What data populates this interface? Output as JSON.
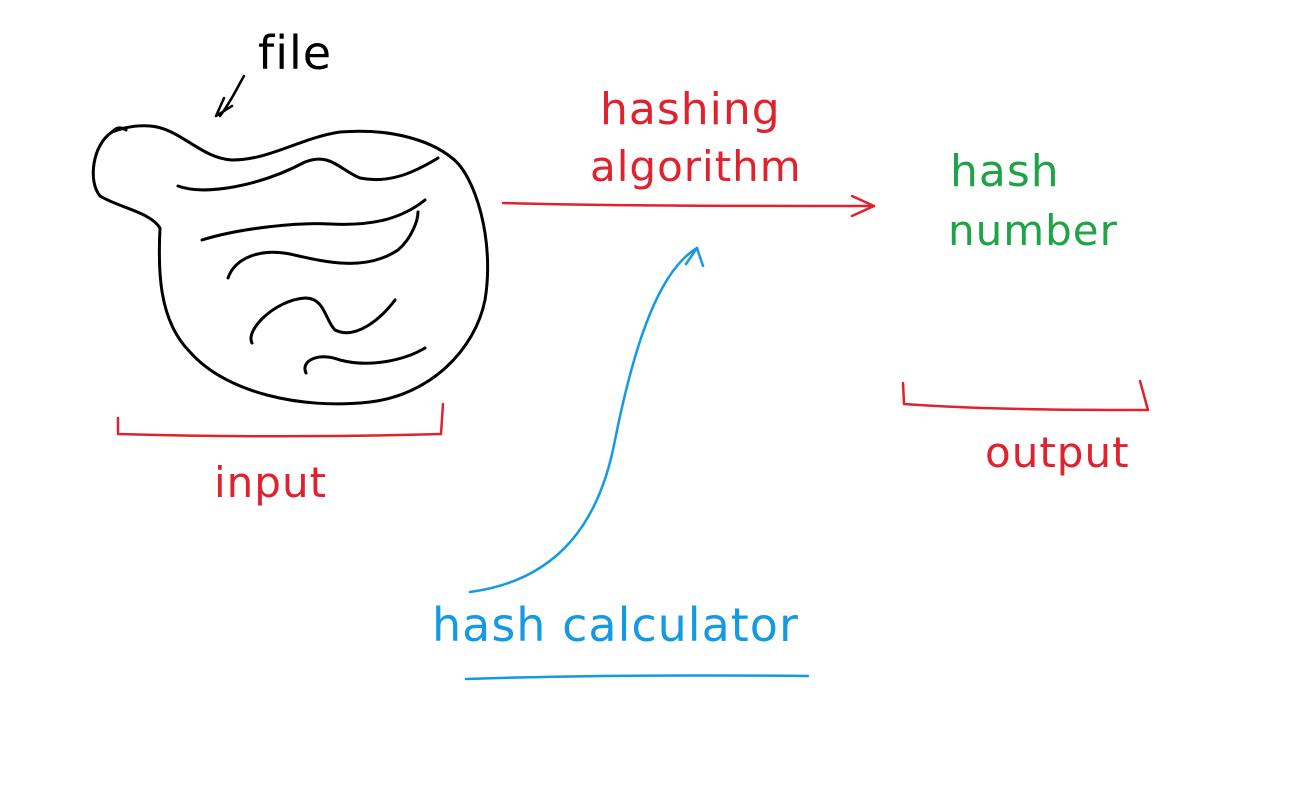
{
  "labels": {
    "file": "file",
    "hashing_line1": "hashing",
    "hashing_line2": "algorithm",
    "hash_number_line1": "hash",
    "hash_number_line2": "number",
    "input": "input",
    "output": "output",
    "hash_calculator": "hash calculator"
  },
  "colors": {
    "ink": "#000000",
    "red": "#e0212e",
    "green": "#1fa445",
    "blue": "#139ae3"
  }
}
